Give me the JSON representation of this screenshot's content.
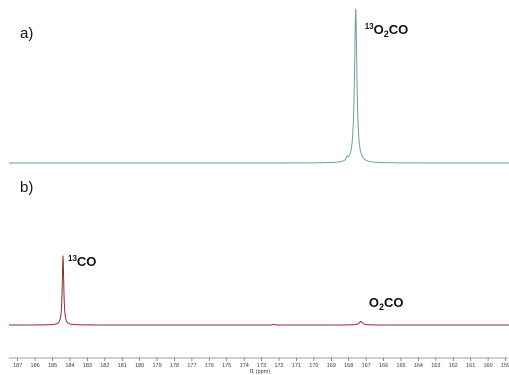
{
  "chart_data": [
    {
      "type": "line",
      "panel_label": "a)",
      "series_color": "#6a9fa6",
      "xlim": [
        187.5,
        158.8
      ],
      "baseline_intensity": 0,
      "peaks": [
        {
          "shift": 167.6,
          "height": 1.0,
          "width": 0.08,
          "label_pre": "13",
          "label_main": "O",
          "label_sub": "2",
          "label_post": "CO"
        },
        {
          "shift": 168.1,
          "height": 0.02,
          "width": 0.05
        }
      ]
    },
    {
      "type": "line",
      "panel_label": "b)",
      "series_color": "#8b2f2f",
      "xlim": [
        187.5,
        158.8
      ],
      "baseline_intensity": 0,
      "peaks": [
        {
          "shift": 184.4,
          "height": 1.0,
          "width": 0.05,
          "label_pre": "13",
          "label_main": "CO",
          "label_sub": "",
          "label_post": ""
        },
        {
          "shift": 167.3,
          "height": 0.05,
          "width": 0.12,
          "label_pre": "",
          "label_main": "O",
          "label_sub": "2",
          "label_post": "CO"
        },
        {
          "shift": 172.3,
          "height": 0.01,
          "width": 0.05
        }
      ]
    }
  ],
  "x_axis": {
    "ticks": [
      187,
      186,
      185,
      184,
      183,
      182,
      181,
      180,
      179,
      178,
      177,
      176,
      175,
      174,
      173,
      172,
      171,
      170,
      169,
      168,
      167,
      166,
      165,
      164,
      163,
      162,
      161,
      160,
      159
    ],
    "label": "f1 (ppm)"
  }
}
